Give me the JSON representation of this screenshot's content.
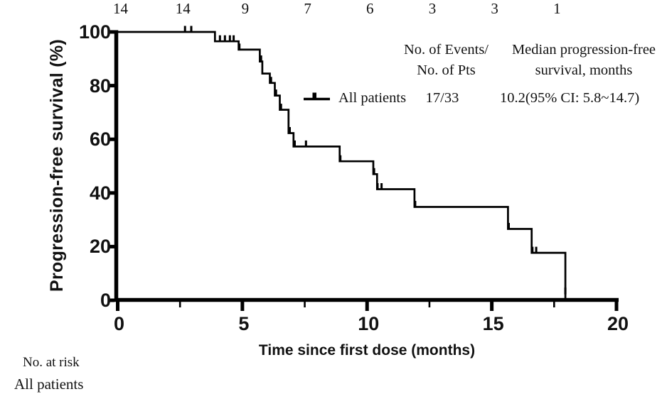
{
  "colors": {
    "line": "#000000",
    "text": "#111111",
    "background": "#ffffff"
  },
  "legend": {
    "events_header": [
      "No. of Events/",
      "No. of Pts"
    ],
    "median_header": [
      "Median progression-free",
      "survival, months"
    ]
  },
  "chart_data": {
    "type": "line",
    "subtype": "kaplan-meier-step",
    "title": "",
    "xlabel": "Time since first dose (months)",
    "ylabel": "Progression-free survival (%)",
    "xlim": [
      0,
      20
    ],
    "ylim": [
      0,
      100
    ],
    "x_major_ticks": [
      0,
      5,
      10,
      15,
      20
    ],
    "x_minor_ticks": [
      2.5,
      7.5,
      12.5,
      17.5
    ],
    "y_ticks": [
      100,
      80,
      60,
      40,
      20,
      0
    ],
    "grid": false,
    "legend_position": "top-right",
    "series": [
      {
        "name": "All patients",
        "n_events_n_pts": "17/33",
        "median_pfs": "10.2(95% CI: 5.8~14.7)",
        "color": "#000000",
        "steps": [
          [
            0,
            100
          ],
          [
            3.9,
            96.5
          ],
          [
            4.85,
            93.4
          ],
          [
            5.7,
            89.0
          ],
          [
            5.8,
            84.5
          ],
          [
            6.1,
            81.0
          ],
          [
            6.3,
            76.3
          ],
          [
            6.5,
            71.0
          ],
          [
            6.85,
            62.3
          ],
          [
            7.05,
            57.3
          ],
          [
            8.9,
            51.8
          ],
          [
            10.25,
            47.0
          ],
          [
            10.4,
            41.4
          ],
          [
            11.9,
            34.8
          ],
          [
            15.65,
            26.6
          ],
          [
            16.6,
            17.7
          ],
          [
            17.95,
            0
          ]
        ],
        "censor_marks": [
          [
            2.7,
            100
          ],
          [
            2.95,
            100
          ],
          [
            4.1,
            96.5
          ],
          [
            4.3,
            96.5
          ],
          [
            4.5,
            96.5
          ],
          [
            4.65,
            96.5
          ],
          [
            4.88,
            93.4
          ],
          [
            5.75,
            89.0
          ],
          [
            6.15,
            81.0
          ],
          [
            6.35,
            76.3
          ],
          [
            6.55,
            71.0
          ],
          [
            6.9,
            62.3
          ],
          [
            7.1,
            57.3
          ],
          [
            7.55,
            57.3
          ],
          [
            8.93,
            51.8
          ],
          [
            10.28,
            47.0
          ],
          [
            10.42,
            41.4
          ],
          [
            10.58,
            41.4
          ],
          [
            11.93,
            34.8
          ],
          [
            15.68,
            26.6
          ],
          [
            16.63,
            17.7
          ],
          [
            16.78,
            17.7
          ],
          [
            17.95,
            2.5
          ]
        ]
      }
    ],
    "at_risk": {
      "label": "No. at risk",
      "row_label": "All patients",
      "times": [
        0,
        2.5,
        5,
        7.5,
        10,
        12.5,
        15,
        17.5
      ],
      "values": [
        14,
        14,
        9,
        7,
        6,
        3,
        3,
        1
      ]
    }
  }
}
